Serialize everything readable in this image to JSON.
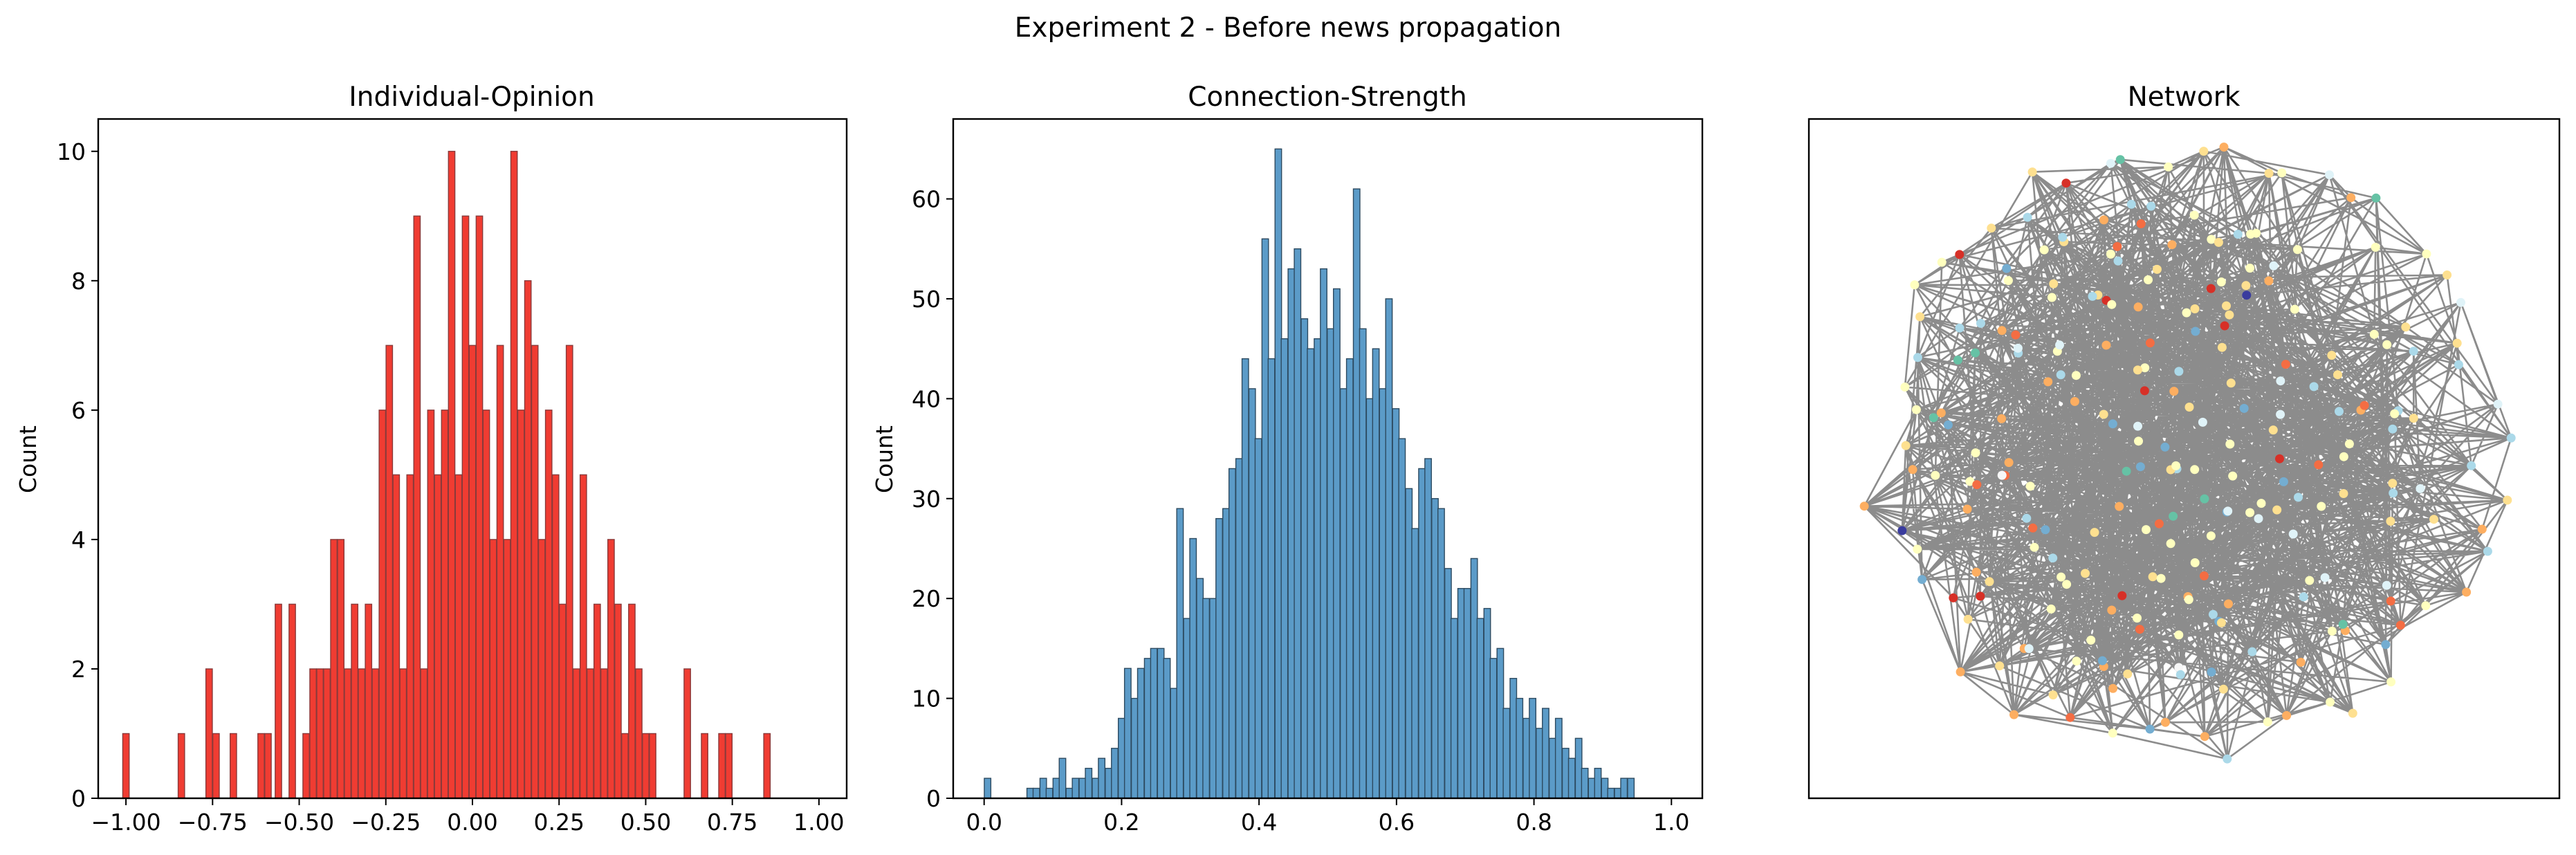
{
  "figure": {
    "suptitle": "Experiment 2 - Before news propagation"
  },
  "colors": {
    "opinion_bar": "#f03c32",
    "opinion_edge": "#8a3a3a",
    "strength_bar": "#5b9bc8",
    "strength_edge": "#2d4a60",
    "network_edge": "#808080"
  },
  "chart_data": [
    {
      "type": "bar",
      "title": "Individual-Opinion",
      "xlabel": "",
      "ylabel": "Count",
      "xlim": [
        -1.08,
        1.08
      ],
      "ylim": [
        0,
        10.5
      ],
      "xticks": [
        -1.0,
        -0.75,
        -0.5,
        -0.25,
        0.0,
        0.25,
        0.5,
        0.75,
        1.0
      ],
      "xtick_labels": [
        "−1.00",
        "−0.75",
        "−0.50",
        "−0.25",
        "0.00",
        "0.25",
        "0.50",
        "0.75",
        "1.00"
      ],
      "yticks": [
        0,
        2,
        4,
        6,
        8,
        10
      ],
      "ytick_labels": [
        "0",
        "2",
        "4",
        "6",
        "8",
        "10"
      ],
      "bin_width": 0.0186,
      "bins": [
        {
          "x": -1.0,
          "v": 1
        },
        {
          "x": -0.84,
          "v": 1
        },
        {
          "x": -0.76,
          "v": 2
        },
        {
          "x": -0.74,
          "v": 1
        },
        {
          "x": -0.69,
          "v": 1
        },
        {
          "x": -0.61,
          "v": 1
        },
        {
          "x": -0.59,
          "v": 1
        },
        {
          "x": -0.56,
          "v": 3
        },
        {
          "x": -0.52,
          "v": 3
        },
        {
          "x": -0.48,
          "v": 1
        },
        {
          "x": -0.46,
          "v": 2
        },
        {
          "x": -0.44,
          "v": 2
        },
        {
          "x": -0.42,
          "v": 2
        },
        {
          "x": -0.4,
          "v": 4
        },
        {
          "x": -0.38,
          "v": 4
        },
        {
          "x": -0.36,
          "v": 2
        },
        {
          "x": -0.34,
          "v": 3
        },
        {
          "x": -0.32,
          "v": 2
        },
        {
          "x": -0.3,
          "v": 3
        },
        {
          "x": -0.28,
          "v": 2
        },
        {
          "x": -0.26,
          "v": 6
        },
        {
          "x": -0.24,
          "v": 7
        },
        {
          "x": -0.22,
          "v": 5
        },
        {
          "x": -0.2,
          "v": 2
        },
        {
          "x": -0.18,
          "v": 5
        },
        {
          "x": -0.16,
          "v": 9
        },
        {
          "x": -0.14,
          "v": 2
        },
        {
          "x": -0.12,
          "v": 6
        },
        {
          "x": -0.1,
          "v": 5
        },
        {
          "x": -0.08,
          "v": 6
        },
        {
          "x": -0.06,
          "v": 10
        },
        {
          "x": -0.04,
          "v": 5
        },
        {
          "x": -0.02,
          "v": 9
        },
        {
          "x": 0.0,
          "v": 7
        },
        {
          "x": 0.02,
          "v": 9
        },
        {
          "x": 0.04,
          "v": 6
        },
        {
          "x": 0.06,
          "v": 4
        },
        {
          "x": 0.08,
          "v": 7
        },
        {
          "x": 0.1,
          "v": 4
        },
        {
          "x": 0.12,
          "v": 10
        },
        {
          "x": 0.14,
          "v": 6
        },
        {
          "x": 0.16,
          "v": 8
        },
        {
          "x": 0.18,
          "v": 7
        },
        {
          "x": 0.2,
          "v": 4
        },
        {
          "x": 0.22,
          "v": 6
        },
        {
          "x": 0.24,
          "v": 5
        },
        {
          "x": 0.26,
          "v": 3
        },
        {
          "x": 0.28,
          "v": 7
        },
        {
          "x": 0.3,
          "v": 2
        },
        {
          "x": 0.32,
          "v": 5
        },
        {
          "x": 0.34,
          "v": 2
        },
        {
          "x": 0.36,
          "v": 3
        },
        {
          "x": 0.38,
          "v": 2
        },
        {
          "x": 0.4,
          "v": 4
        },
        {
          "x": 0.42,
          "v": 3
        },
        {
          "x": 0.44,
          "v": 1
        },
        {
          "x": 0.46,
          "v": 3
        },
        {
          "x": 0.48,
          "v": 2
        },
        {
          "x": 0.5,
          "v": 1
        },
        {
          "x": 0.52,
          "v": 1
        },
        {
          "x": 0.62,
          "v": 2
        },
        {
          "x": 0.67,
          "v": 1
        },
        {
          "x": 0.72,
          "v": 1
        },
        {
          "x": 0.74,
          "v": 1
        },
        {
          "x": 0.85,
          "v": 1
        }
      ]
    },
    {
      "type": "bar",
      "title": "Connection-Strength",
      "xlabel": "",
      "ylabel": "Count",
      "xlim": [
        -0.045,
        1.045
      ],
      "ylim": [
        0,
        68
      ],
      "xticks": [
        0.0,
        0.2,
        0.4,
        0.6,
        0.8,
        1.0
      ],
      "xtick_labels": [
        "0.0",
        "0.2",
        "0.4",
        "0.6",
        "0.8",
        "1.0"
      ],
      "yticks": [
        0,
        10,
        20,
        30,
        40,
        50,
        60
      ],
      "ytick_labels": [
        "0",
        "10",
        "20",
        "30",
        "40",
        "50",
        "60"
      ],
      "bin_width": 0.0095,
      "bins": [
        {
          "x": 0.005,
          "v": 2
        },
        {
          "x": 0.067,
          "v": 1
        },
        {
          "x": 0.076,
          "v": 1
        },
        {
          "x": 0.086,
          "v": 2
        },
        {
          "x": 0.095,
          "v": 1
        },
        {
          "x": 0.105,
          "v": 2
        },
        {
          "x": 0.114,
          "v": 4
        },
        {
          "x": 0.124,
          "v": 1
        },
        {
          "x": 0.133,
          "v": 2
        },
        {
          "x": 0.143,
          "v": 2
        },
        {
          "x": 0.152,
          "v": 3
        },
        {
          "x": 0.162,
          "v": 2
        },
        {
          "x": 0.171,
          "v": 4
        },
        {
          "x": 0.181,
          "v": 3
        },
        {
          "x": 0.19,
          "v": 5
        },
        {
          "x": 0.2,
          "v": 8
        },
        {
          "x": 0.209,
          "v": 13
        },
        {
          "x": 0.219,
          "v": 10
        },
        {
          "x": 0.228,
          "v": 13
        },
        {
          "x": 0.238,
          "v": 14
        },
        {
          "x": 0.247,
          "v": 15
        },
        {
          "x": 0.257,
          "v": 15
        },
        {
          "x": 0.266,
          "v": 14
        },
        {
          "x": 0.276,
          "v": 11
        },
        {
          "x": 0.285,
          "v": 29
        },
        {
          "x": 0.295,
          "v": 18
        },
        {
          "x": 0.304,
          "v": 26
        },
        {
          "x": 0.314,
          "v": 22
        },
        {
          "x": 0.323,
          "v": 20
        },
        {
          "x": 0.333,
          "v": 20
        },
        {
          "x": 0.342,
          "v": 28
        },
        {
          "x": 0.352,
          "v": 29
        },
        {
          "x": 0.361,
          "v": 33
        },
        {
          "x": 0.371,
          "v": 34
        },
        {
          "x": 0.38,
          "v": 44
        },
        {
          "x": 0.39,
          "v": 41
        },
        {
          "x": 0.399,
          "v": 36
        },
        {
          "x": 0.409,
          "v": 56
        },
        {
          "x": 0.418,
          "v": 44
        },
        {
          "x": 0.428,
          "v": 65
        },
        {
          "x": 0.437,
          "v": 46
        },
        {
          "x": 0.447,
          "v": 53
        },
        {
          "x": 0.456,
          "v": 55
        },
        {
          "x": 0.466,
          "v": 48
        },
        {
          "x": 0.475,
          "v": 45
        },
        {
          "x": 0.485,
          "v": 46
        },
        {
          "x": 0.494,
          "v": 53
        },
        {
          "x": 0.504,
          "v": 47
        },
        {
          "x": 0.513,
          "v": 51
        },
        {
          "x": 0.523,
          "v": 41
        },
        {
          "x": 0.532,
          "v": 44
        },
        {
          "x": 0.542,
          "v": 61
        },
        {
          "x": 0.551,
          "v": 47
        },
        {
          "x": 0.561,
          "v": 40
        },
        {
          "x": 0.57,
          "v": 45
        },
        {
          "x": 0.58,
          "v": 41
        },
        {
          "x": 0.589,
          "v": 50
        },
        {
          "x": 0.599,
          "v": 39
        },
        {
          "x": 0.608,
          "v": 36
        },
        {
          "x": 0.618,
          "v": 31
        },
        {
          "x": 0.627,
          "v": 27
        },
        {
          "x": 0.637,
          "v": 33
        },
        {
          "x": 0.646,
          "v": 34
        },
        {
          "x": 0.656,
          "v": 30
        },
        {
          "x": 0.665,
          "v": 29
        },
        {
          "x": 0.675,
          "v": 23
        },
        {
          "x": 0.684,
          "v": 18
        },
        {
          "x": 0.694,
          "v": 21
        },
        {
          "x": 0.703,
          "v": 21
        },
        {
          "x": 0.713,
          "v": 24
        },
        {
          "x": 0.722,
          "v": 18
        },
        {
          "x": 0.732,
          "v": 19
        },
        {
          "x": 0.741,
          "v": 14
        },
        {
          "x": 0.751,
          "v": 15
        },
        {
          "x": 0.76,
          "v": 9
        },
        {
          "x": 0.77,
          "v": 12
        },
        {
          "x": 0.779,
          "v": 10
        },
        {
          "x": 0.789,
          "v": 8
        },
        {
          "x": 0.798,
          "v": 10
        },
        {
          "x": 0.808,
          "v": 7
        },
        {
          "x": 0.817,
          "v": 9
        },
        {
          "x": 0.827,
          "v": 6
        },
        {
          "x": 0.836,
          "v": 8
        },
        {
          "x": 0.846,
          "v": 5
        },
        {
          "x": 0.855,
          "v": 4
        },
        {
          "x": 0.865,
          "v": 6
        },
        {
          "x": 0.874,
          "v": 3
        },
        {
          "x": 0.884,
          "v": 2
        },
        {
          "x": 0.893,
          "v": 3
        },
        {
          "x": 0.903,
          "v": 2
        },
        {
          "x": 0.912,
          "v": 1
        },
        {
          "x": 0.922,
          "v": 1
        },
        {
          "x": 0.931,
          "v": 2
        },
        {
          "x": 0.941,
          "v": 2
        }
      ]
    },
    {
      "type": "network",
      "title": "Network",
      "xlabel": "",
      "ylabel": "",
      "node_palette": [
        "#3a3c9e",
        "#d73027",
        "#f46d43",
        "#fdae61",
        "#fee090",
        "#ffffbf",
        "#e0f3f8",
        "#abd9e9",
        "#74add1",
        "#66c2a5",
        "#f7f7f7"
      ],
      "edge_color": "#808080"
    }
  ]
}
